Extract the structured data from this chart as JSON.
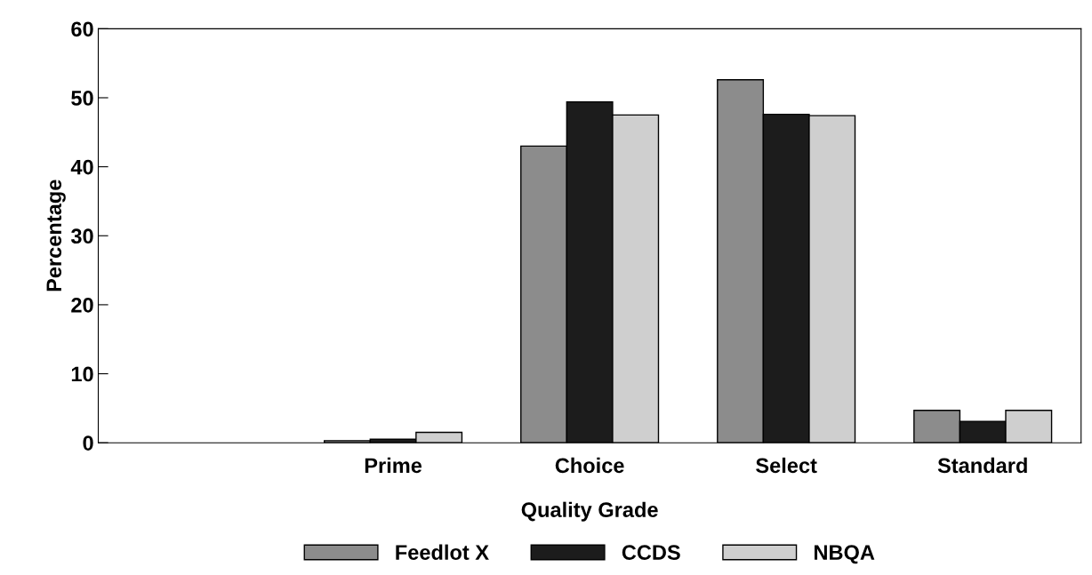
{
  "chart_data": {
    "type": "bar",
    "xlabel": "Quality Grade",
    "ylabel": "Percentage",
    "categories": [
      null,
      "Prime",
      "Choice",
      "Select",
      "Standard"
    ],
    "series": [
      {
        "name": "Feedlot X",
        "color": "#8c8c8c",
        "values": [
          null,
          0.3,
          43,
          52.6,
          4.7
        ]
      },
      {
        "name": "CCDS",
        "color": "#1c1c1c",
        "values": [
          null,
          0.5,
          49.4,
          47.6,
          3.1
        ]
      },
      {
        "name": "NBQA",
        "color": "#cfcfcf",
        "values": [
          null,
          1.5,
          47.5,
          47.4,
          4.7
        ]
      }
    ],
    "ylim": [
      0,
      60
    ],
    "yticks": [
      0,
      10,
      20,
      30,
      40,
      50,
      60
    ],
    "grid": false,
    "legend": "bottom"
  }
}
